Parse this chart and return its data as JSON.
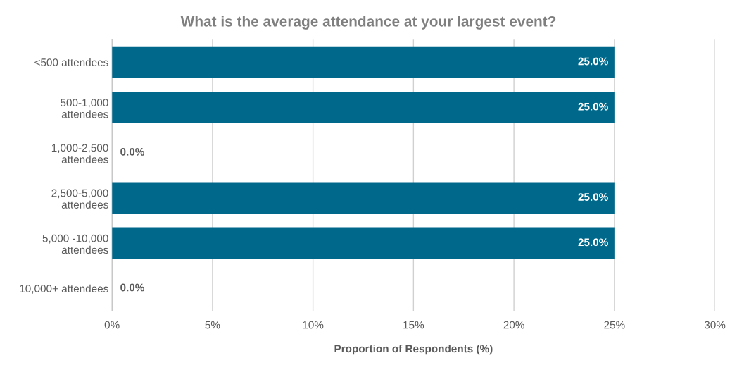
{
  "chart_data": {
    "type": "bar",
    "orientation": "horizontal",
    "title": "What is the average attendance at your largest event?",
    "xlabel": "Proportion of Respondents (%)",
    "categories": [
      "<500 attendees",
      "500-1,000\nattendees",
      "1,000-2,500\nattendees",
      "2,500-5,000\nattendees",
      "5,000 -10,000\nattendees",
      "10,000+ attendees"
    ],
    "values": [
      25.0,
      25.0,
      0.0,
      25.0,
      25.0,
      0.0
    ],
    "value_labels": [
      "25.0%",
      "25.0%",
      "0.0%",
      "25.0%",
      "25.0%",
      "0.0%"
    ],
    "color": "#00688b",
    "xlim": [
      0,
      30
    ],
    "xticks": [
      {
        "value": 0,
        "label": "0%"
      },
      {
        "value": 5,
        "label": "5%"
      },
      {
        "value": 10,
        "label": "10%"
      },
      {
        "value": 15,
        "label": "15%"
      },
      {
        "value": 20,
        "label": "20%"
      },
      {
        "value": 25,
        "label": "25%"
      },
      {
        "value": 30,
        "label": "30%"
      }
    ],
    "grid": "x"
  }
}
